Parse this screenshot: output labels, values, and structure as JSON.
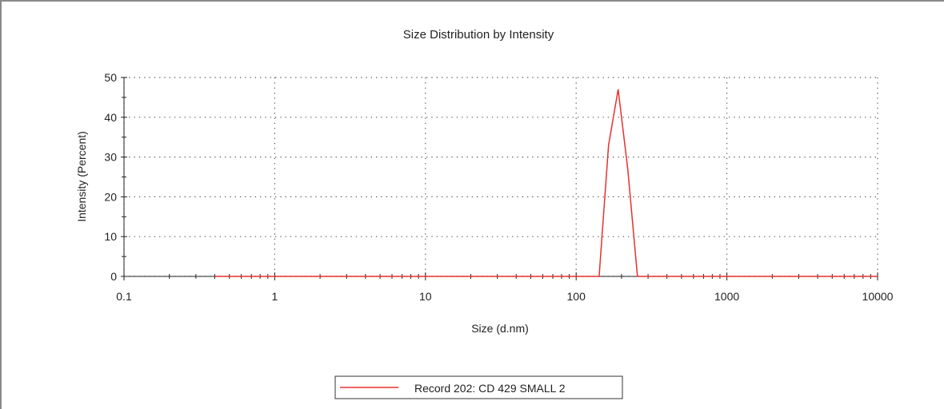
{
  "chart_data": {
    "type": "line",
    "title": "Size Distribution by Intensity",
    "xlabel": "Size (d.nm)",
    "ylabel": "Intensity (Percent)",
    "xscale": "log",
    "xlim": [
      0.1,
      10000
    ],
    "ylim": [
      0,
      50
    ],
    "x_ticks": [
      0.1,
      1,
      10,
      100,
      1000,
      10000
    ],
    "x_tick_labels": [
      "0.1",
      "1",
      "10",
      "100",
      "1000",
      "10000"
    ],
    "y_ticks": [
      0,
      10,
      20,
      30,
      40,
      50
    ],
    "y_tick_labels": [
      "0",
      "10",
      "20",
      "30",
      "40",
      "50"
    ],
    "grid": true,
    "legend_position": "bottom-center",
    "series": [
      {
        "name": "Record 202: CD 429 SMALL 2",
        "color": "#e8302f",
        "x": [
          0.4,
          1,
          10,
          100,
          142,
          164,
          190,
          220,
          255,
          1000,
          10000
        ],
        "y": [
          0,
          0,
          0,
          0,
          0,
          33,
          47,
          27,
          0,
          0,
          0
        ]
      }
    ]
  }
}
